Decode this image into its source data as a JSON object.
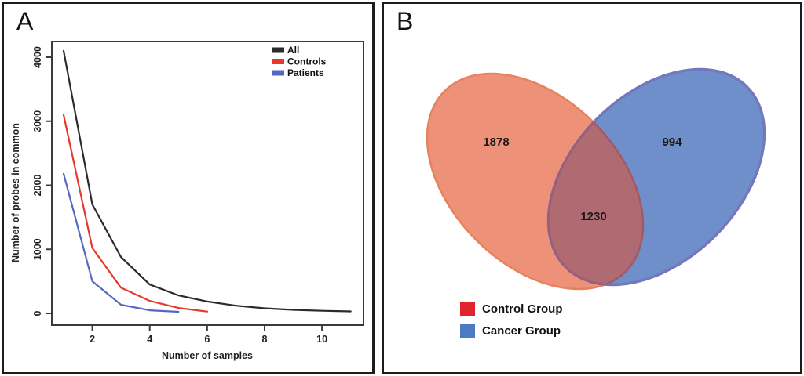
{
  "figure": {
    "panel_labels": {
      "a": "A",
      "b": "B"
    }
  },
  "chart_data": [
    {
      "type": "line",
      "panel": "A",
      "x": [
        1,
        2,
        3,
        4,
        5,
        6,
        7,
        8,
        9,
        10,
        11
      ],
      "series": [
        {
          "name": "All",
          "color": "#2b2b2b",
          "values": [
            4100,
            1700,
            880,
            450,
            280,
            185,
            120,
            80,
            55,
            40,
            30
          ]
        },
        {
          "name": "Controls",
          "color": "#e8382b",
          "values": [
            3100,
            1020,
            400,
            195,
            85,
            28
          ]
        },
        {
          "name": "Patients",
          "color": "#5568be",
          "values": [
            2180,
            500,
            135,
            48,
            25
          ]
        }
      ],
      "xlabel": "Number of samples",
      "ylabel": "Number of probes in common",
      "xticks": [
        2,
        4,
        6,
        8,
        10
      ],
      "yticks": [
        0,
        1000,
        2000,
        3000,
        4000
      ],
      "xlim": [
        0.6,
        11.45
      ],
      "ylim": [
        0,
        4245
      ],
      "grid": false,
      "legend_position": "top-right"
    },
    {
      "type": "venn",
      "panel": "B",
      "sets": [
        {
          "label": "Control Group",
          "size_exclusive": 1878,
          "fill": "#ee9179",
          "stroke": "#e6825e",
          "legend_color": "#df2430"
        },
        {
          "label": "Cancer Group",
          "size_exclusive": 994,
          "fill": "#6e8fc9",
          "stroke": "#7378be",
          "legend_color": "#4a7bc4"
        }
      ],
      "overlap": 1230,
      "overlap_fill": "#b06a72",
      "overlap_edge_blue": "#9b5e7b",
      "overlap_edge_salmon": "#a05965"
    }
  ]
}
